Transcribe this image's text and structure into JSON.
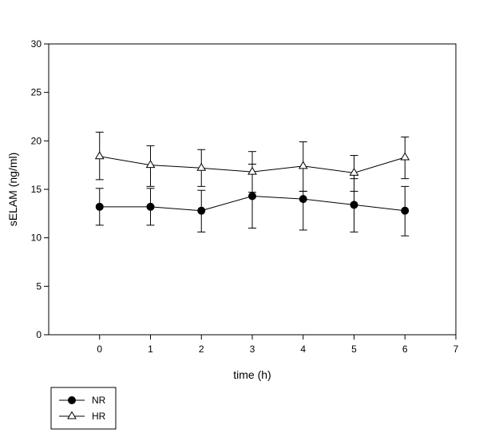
{
  "chart_data": {
    "type": "line",
    "title": "",
    "xlabel": "time (h)",
    "ylabel": "sELAM (ng/ml)",
    "xlim": [
      -1,
      7
    ],
    "ylim": [
      0,
      30
    ],
    "x_ticks": [
      0,
      1,
      2,
      3,
      4,
      5,
      6,
      7
    ],
    "y_ticks": [
      0,
      5,
      10,
      15,
      20,
      25,
      30
    ],
    "x_tick_labels": [
      "0",
      "1",
      "2",
      "3",
      "4",
      "5",
      "6",
      "7"
    ],
    "y_tick_labels": [
      "0",
      "5",
      "10",
      "15",
      "20",
      "25",
      "30"
    ],
    "grid": false,
    "legend_position": "bottom-left, outside plot",
    "series": [
      {
        "name": "NR",
        "marker": "filled-circle",
        "color": "#000000",
        "x": [
          0,
          1,
          2,
          3,
          4,
          5,
          6
        ],
        "y": [
          13.2,
          13.2,
          12.8,
          14.3,
          14.0,
          13.4,
          12.8
        ],
        "err_low": [
          11.3,
          11.3,
          10.6,
          11.0,
          10.8,
          10.6,
          10.2
        ],
        "err_high": [
          15.1,
          15.1,
          14.9,
          17.6,
          14.8,
          16.1,
          15.3
        ]
      },
      {
        "name": "HR",
        "marker": "open-triangle",
        "color": "#000000",
        "x": [
          0,
          1,
          2,
          3,
          4,
          5,
          6
        ],
        "y": [
          18.4,
          17.5,
          17.2,
          16.8,
          17.4,
          16.7,
          18.3
        ],
        "err_low": [
          16.0,
          15.3,
          15.3,
          14.7,
          14.8,
          14.8,
          16.1
        ],
        "err_high": [
          20.9,
          19.5,
          19.1,
          18.9,
          19.9,
          18.5,
          20.4
        ]
      }
    ]
  }
}
